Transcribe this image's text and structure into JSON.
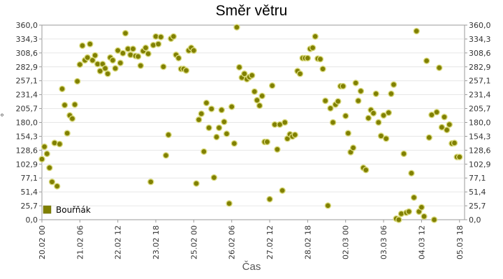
{
  "chart_data": {
    "type": "scatter",
    "title": "Směr větru",
    "xlabel": "Čas",
    "ylabel": "°",
    "ylim": [
      0,
      360
    ],
    "xlim": [
      "2019-02-20T00:00",
      "2019-03-05T22:00"
    ],
    "y_ticks": [
      "0,0",
      "25,7",
      "51,4",
      "77,1",
      "102,9",
      "128,6",
      "154,3",
      "180,0",
      "205,7",
      "231,4",
      "257,1",
      "282,9",
      "308,6",
      "334,3",
      "360,0"
    ],
    "x_ticks": [
      {
        "label": "20.02 00",
        "x": "2019-02-20T00:00"
      },
      {
        "label": "21.02 06",
        "x": "2019-02-21T06:00"
      },
      {
        "label": "22.02 12",
        "x": "2019-02-22T12:00"
      },
      {
        "label": "23.02 18",
        "x": "2019-02-23T18:00"
      },
      {
        "label": "25.02 00",
        "x": "2019-02-25T00:00"
      },
      {
        "label": "26.02 06",
        "x": "2019-02-26T06:00"
      },
      {
        "label": "27.02 12",
        "x": "2019-02-27T12:00"
      },
      {
        "label": "28.02 18",
        "x": "2019-02-28T18:00"
      },
      {
        "label": "02.03 00",
        "x": "2019-03-02T00:00"
      },
      {
        "label": "03.03 06",
        "x": "2019-03-03T06:00"
      },
      {
        "label": "04.03 12",
        "x": "2019-03-04T12:00"
      },
      {
        "label": "05.03 18",
        "x": "2019-03-05T18:00"
      }
    ],
    "grid": true,
    "legend_position": "bottom-left",
    "series": [
      {
        "name": "Bouřňák",
        "color": "#808000",
        "points": [
          [
            "2019-02-20T00:00",
            112
          ],
          [
            "2019-02-20T02:00",
            135
          ],
          [
            "2019-02-20T04:00",
            122
          ],
          [
            "2019-02-20T06:00",
            96
          ],
          [
            "2019-02-20T08:00",
            70
          ],
          [
            "2019-02-20T10:00",
            142
          ],
          [
            "2019-02-20T12:00",
            62
          ],
          [
            "2019-02-20T14:00",
            140
          ],
          [
            "2019-02-20T16:00",
            242
          ],
          [
            "2019-02-20T18:00",
            212
          ],
          [
            "2019-02-20T20:00",
            160
          ],
          [
            "2019-02-20T22:00",
            193
          ],
          [
            "2019-02-21T00:00",
            187
          ],
          [
            "2019-02-21T02:00",
            213
          ],
          [
            "2019-02-21T04:00",
            256
          ],
          [
            "2019-02-21T06:00",
            287
          ],
          [
            "2019-02-21T08:00",
            322
          ],
          [
            "2019-02-21T10:00",
            295
          ],
          [
            "2019-02-21T12:00",
            300
          ],
          [
            "2019-02-21T14:00",
            325
          ],
          [
            "2019-02-21T16:00",
            295
          ],
          [
            "2019-02-21T18:00",
            304
          ],
          [
            "2019-02-21T20:00",
            288
          ],
          [
            "2019-02-21T22:00",
            275
          ],
          [
            "2019-02-22T00:00",
            288
          ],
          [
            "2019-02-22T02:00",
            280
          ],
          [
            "2019-02-22T04:00",
            270
          ],
          [
            "2019-02-22T06:00",
            300
          ],
          [
            "2019-02-22T08:00",
            295
          ],
          [
            "2019-02-22T10:00",
            280
          ],
          [
            "2019-02-22T12:00",
            313
          ],
          [
            "2019-02-22T14:00",
            290
          ],
          [
            "2019-02-22T16:00",
            308
          ],
          [
            "2019-02-22T18:00",
            345
          ],
          [
            "2019-02-22T20:00",
            316
          ],
          [
            "2019-02-22T22:00",
            305
          ],
          [
            "2019-02-23T00:00",
            316
          ],
          [
            "2019-02-23T02:00",
            303
          ],
          [
            "2019-02-23T04:00",
            302
          ],
          [
            "2019-02-23T06:00",
            285
          ],
          [
            "2019-02-23T08:00",
            312
          ],
          [
            "2019-02-23T10:00",
            318
          ],
          [
            "2019-02-23T12:00",
            307
          ],
          [
            "2019-02-23T14:00",
            70
          ],
          [
            "2019-02-23T16:00",
            323
          ],
          [
            "2019-02-23T18:00",
            339
          ],
          [
            "2019-02-23T20:00",
            325
          ],
          [
            "2019-02-23T22:00",
            338
          ],
          [
            "2019-02-24T00:00",
            283
          ],
          [
            "2019-02-24T02:00",
            119
          ],
          [
            "2019-02-24T04:00",
            157
          ],
          [
            "2019-02-24T06:00",
            335
          ],
          [
            "2019-02-24T08:00",
            339
          ],
          [
            "2019-02-24T10:00",
            305
          ],
          [
            "2019-02-24T12:00",
            299
          ],
          [
            "2019-02-24T14:00",
            279
          ],
          [
            "2019-02-24T16:00",
            279
          ],
          [
            "2019-02-24T18:00",
            276
          ],
          [
            "2019-02-24T20:00",
            313
          ],
          [
            "2019-02-24T22:00",
            318
          ],
          [
            "2019-02-25T00:00",
            313
          ],
          [
            "2019-02-25T02:00",
            67
          ],
          [
            "2019-02-25T04:00",
            185
          ],
          [
            "2019-02-25T06:00",
            196
          ],
          [
            "2019-02-25T08:00",
            126
          ],
          [
            "2019-02-25T10:00",
            216
          ],
          [
            "2019-02-25T12:00",
            170
          ],
          [
            "2019-02-25T14:00",
            205
          ],
          [
            "2019-02-25T16:00",
            78
          ],
          [
            "2019-02-25T18:00",
            153
          ],
          [
            "2019-02-25T20:00",
            170
          ],
          [
            "2019-02-25T22:00",
            203
          ],
          [
            "2019-02-26T00:00",
            181
          ],
          [
            "2019-02-26T02:00",
            159
          ],
          [
            "2019-02-26T04:00",
            30
          ],
          [
            "2019-02-26T06:00",
            209
          ],
          [
            "2019-02-26T08:00",
            141
          ],
          [
            "2019-02-26T10:00",
            356
          ],
          [
            "2019-02-26T12:00",
            282
          ],
          [
            "2019-02-26T14:00",
            263
          ],
          [
            "2019-02-26T16:00",
            270
          ],
          [
            "2019-02-26T18:00",
            260
          ],
          [
            "2019-02-26T20:00",
            264
          ],
          [
            "2019-02-26T22:00",
            267
          ],
          [
            "2019-02-27T00:00",
            237
          ],
          [
            "2019-02-27T02:00",
            221
          ],
          [
            "2019-02-27T04:00",
            211
          ],
          [
            "2019-02-27T06:00",
            229
          ],
          [
            "2019-02-27T08:00",
            144
          ],
          [
            "2019-02-27T10:00",
            144
          ],
          [
            "2019-02-27T12:00",
            38
          ],
          [
            "2019-02-27T14:00",
            248
          ],
          [
            "2019-02-27T16:00",
            176
          ],
          [
            "2019-02-27T18:00",
            130
          ],
          [
            "2019-02-27T20:00",
            176
          ],
          [
            "2019-02-27T22:00",
            54
          ],
          [
            "2019-02-28T00:00",
            180
          ],
          [
            "2019-02-28T02:00",
            150
          ],
          [
            "2019-02-28T04:00",
            158
          ],
          [
            "2019-02-28T06:00",
            154
          ],
          [
            "2019-02-28T08:00",
            157
          ],
          [
            "2019-02-28T10:00",
            275
          ],
          [
            "2019-02-28T12:00",
            270
          ],
          [
            "2019-02-28T14:00",
            299
          ],
          [
            "2019-02-28T16:00",
            299
          ],
          [
            "2019-02-28T18:00",
            299
          ],
          [
            "2019-02-28T20:00",
            316
          ],
          [
            "2019-02-28T22:00",
            318
          ],
          [
            "2019-03-01T00:00",
            339
          ],
          [
            "2019-03-01T02:00",
            298
          ],
          [
            "2019-03-01T04:00",
            297
          ],
          [
            "2019-03-01T06:00",
            279
          ],
          [
            "2019-03-01T08:00",
            220
          ],
          [
            "2019-03-01T10:00",
            26
          ],
          [
            "2019-03-01T12:00",
            206
          ],
          [
            "2019-03-01T14:00",
            180
          ],
          [
            "2019-03-01T16:00",
            213
          ],
          [
            "2019-03-01T18:00",
            219
          ],
          [
            "2019-03-01T20:00",
            247
          ],
          [
            "2019-03-01T22:00",
            247
          ],
          [
            "2019-03-02T00:00",
            192
          ],
          [
            "2019-03-02T02:00",
            160
          ],
          [
            "2019-03-02T04:00",
            125
          ],
          [
            "2019-03-02T06:00",
            133
          ],
          [
            "2019-03-02T08:00",
            253
          ],
          [
            "2019-03-02T10:00",
            220
          ],
          [
            "2019-03-02T12:00",
            238
          ],
          [
            "2019-03-02T14:00",
            96
          ],
          [
            "2019-03-02T16:00",
            92
          ],
          [
            "2019-03-02T18:00",
            188
          ],
          [
            "2019-03-02T20:00",
            203
          ],
          [
            "2019-03-02T22:00",
            197
          ],
          [
            "2019-03-03T00:00",
            233
          ],
          [
            "2019-03-03T02:00",
            180
          ],
          [
            "2019-03-03T04:00",
            155
          ],
          [
            "2019-03-03T06:00",
            193
          ],
          [
            "2019-03-03T08:00",
            150
          ],
          [
            "2019-03-03T10:00",
            198
          ],
          [
            "2019-03-03T12:00",
            233
          ],
          [
            "2019-03-03T14:00",
            250
          ],
          [
            "2019-03-03T16:00",
            2
          ],
          [
            "2019-03-03T18:00",
            0
          ],
          [
            "2019-03-03T20:00",
            11
          ],
          [
            "2019-03-03T22:00",
            122
          ],
          [
            "2019-03-04T00:00",
            13
          ],
          [
            "2019-03-04T02:00",
            15
          ],
          [
            "2019-03-04T04:00",
            86
          ],
          [
            "2019-03-04T06:00",
            41
          ],
          [
            "2019-03-04T08:00",
            349
          ],
          [
            "2019-03-04T10:00",
            15
          ],
          [
            "2019-03-04T12:00",
            23
          ],
          [
            "2019-03-04T14:00",
            6
          ],
          [
            "2019-03-04T16:00",
            294
          ],
          [
            "2019-03-04T18:00",
            152
          ],
          [
            "2019-03-04T20:00",
            194
          ],
          [
            "2019-03-04T22:00",
            0
          ],
          [
            "2019-03-05T00:00",
            199
          ],
          [
            "2019-03-05T02:00",
            281
          ],
          [
            "2019-03-05T04:00",
            171
          ],
          [
            "2019-03-05T06:00",
            190
          ],
          [
            "2019-03-05T08:00",
            166
          ],
          [
            "2019-03-05T10:00",
            176
          ],
          [
            "2019-03-05T12:00",
            141
          ],
          [
            "2019-03-05T14:00",
            142
          ],
          [
            "2019-03-05T16:00",
            116
          ],
          [
            "2019-03-05T18:00",
            116
          ]
        ]
      }
    ]
  }
}
